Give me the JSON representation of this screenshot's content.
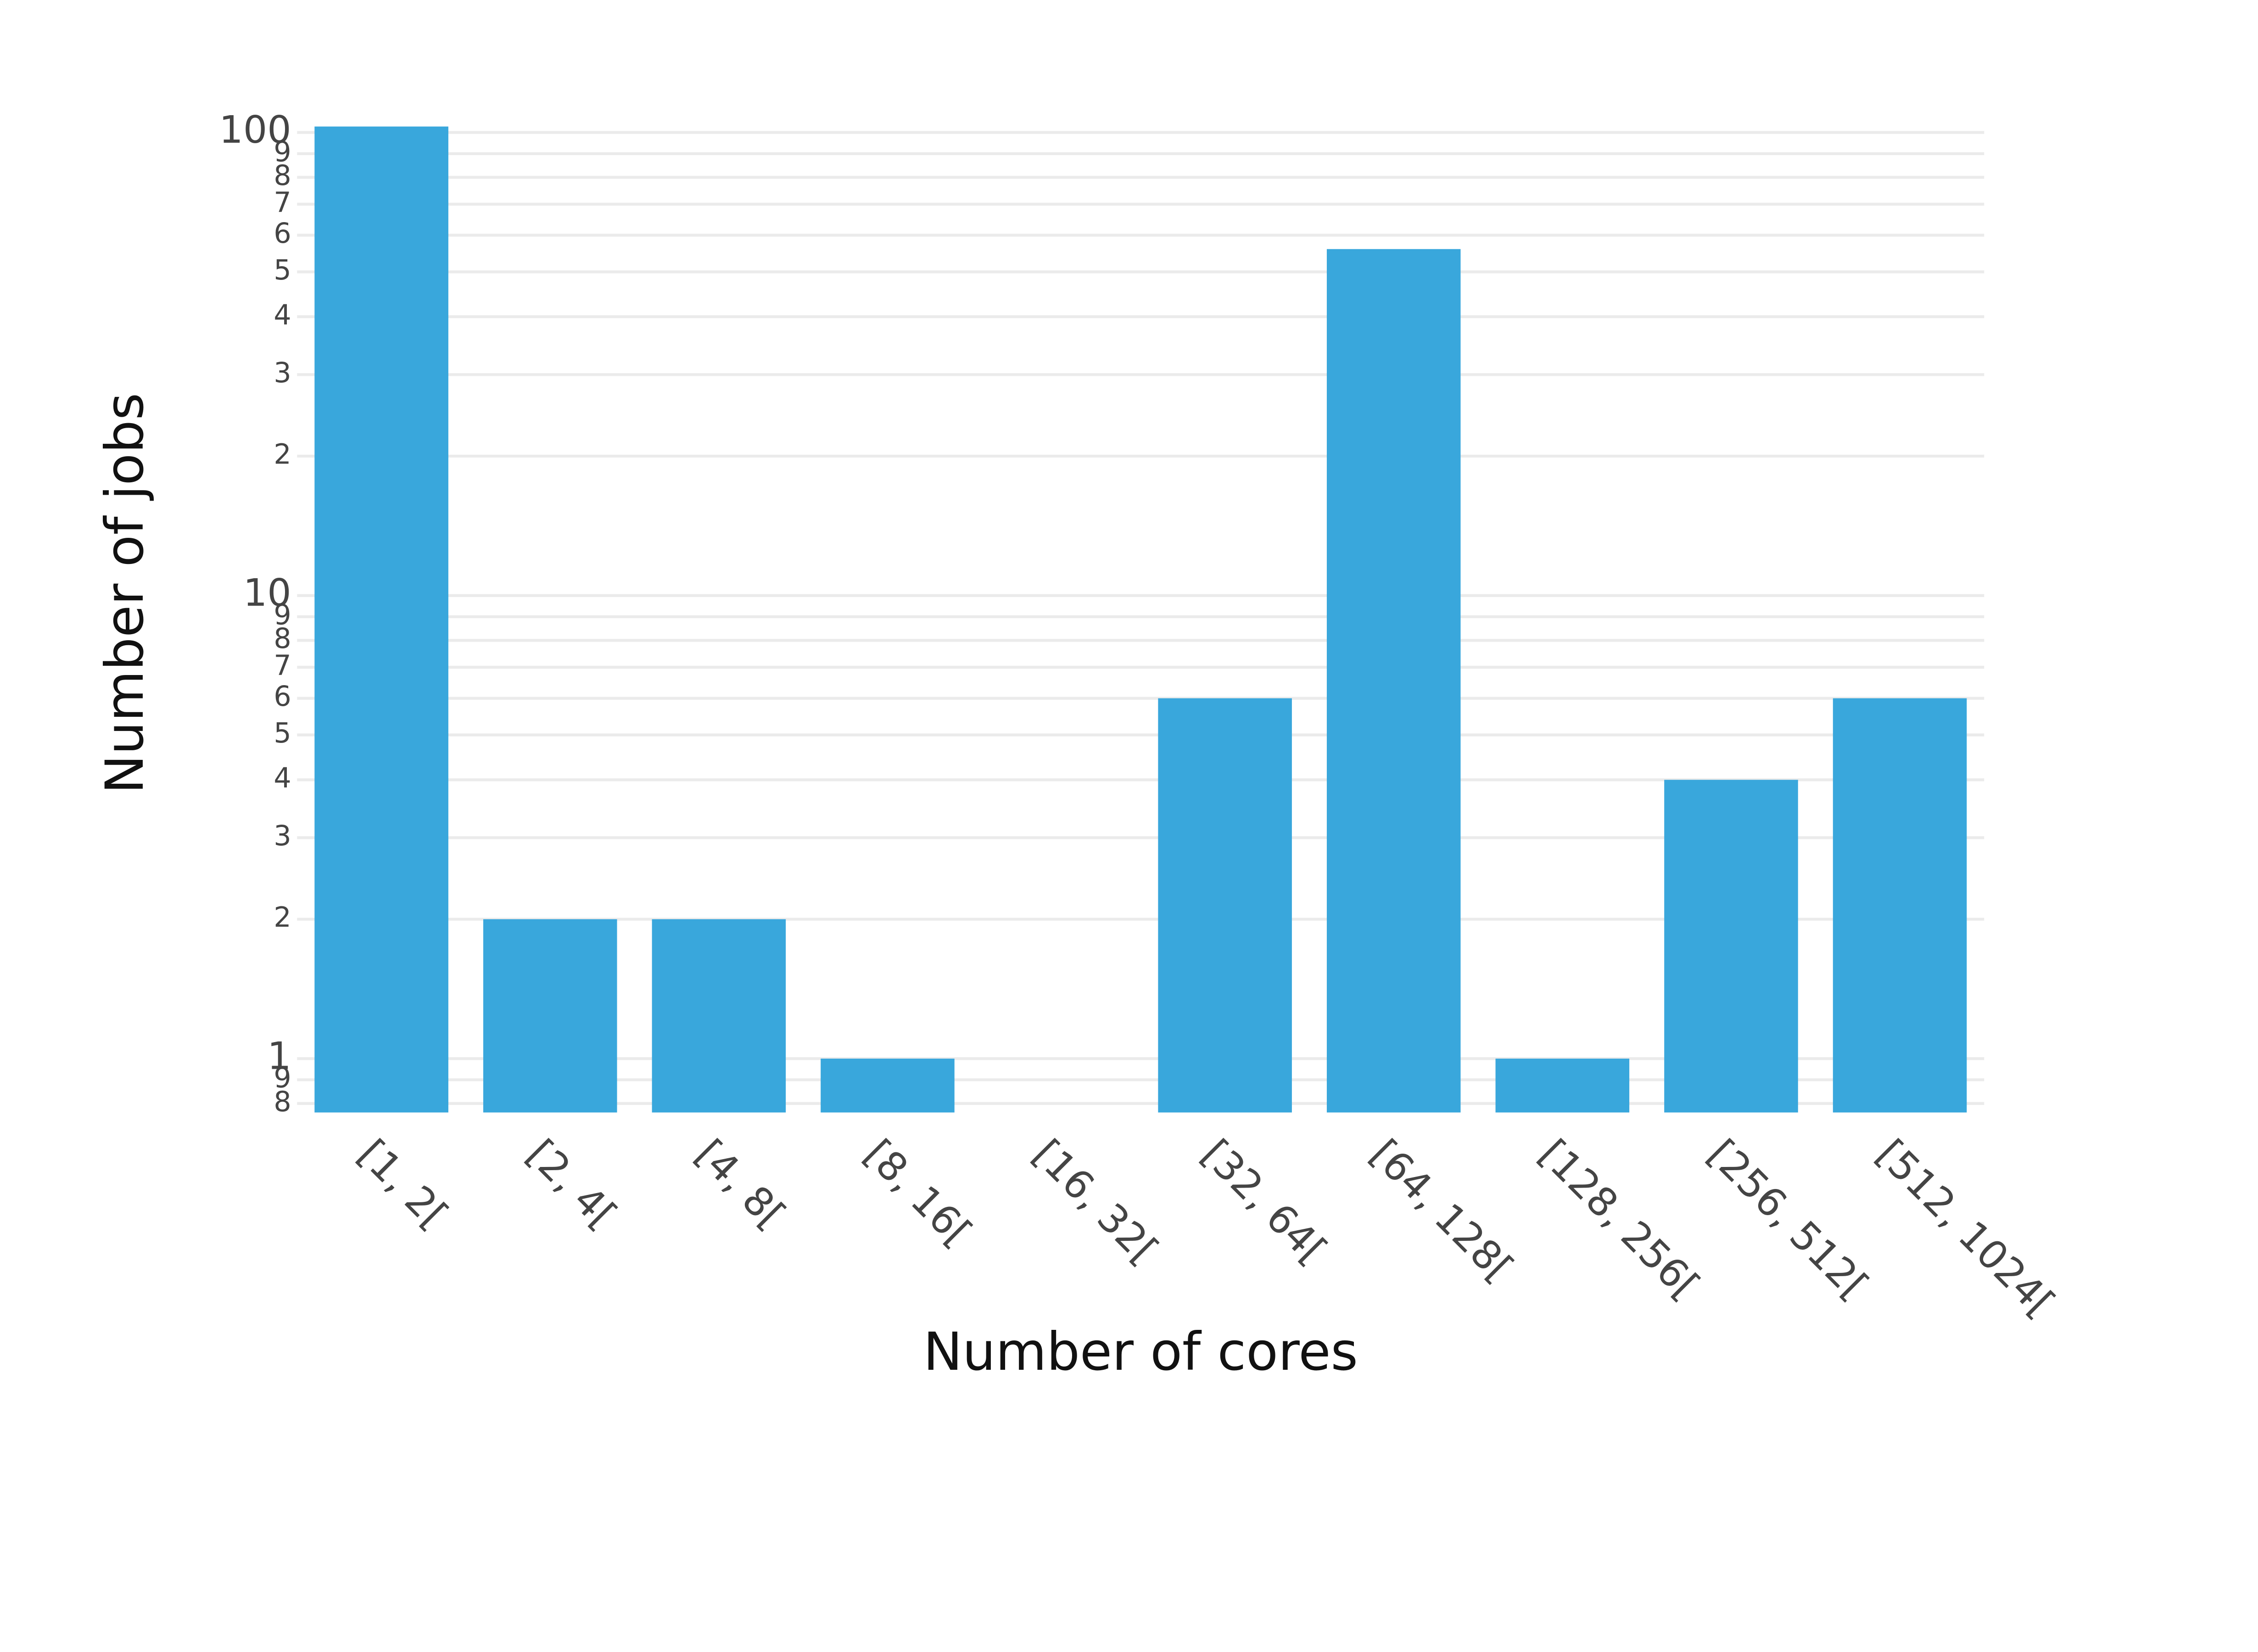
{
  "chart_data": {
    "type": "bar",
    "x_label": "Number of cores",
    "y_label": "Number of jobs",
    "categories": [
      "[1, 2[",
      "[2, 4[",
      "[4, 8[",
      "[8, 16[",
      "[16, 32[",
      "[32, 64[",
      "[64, 128[",
      "[128, 256[",
      "[256, 512[",
      "[512, 1024["
    ],
    "values": [
      103,
      2,
      2,
      1,
      0,
      6,
      56,
      1,
      4,
      6
    ],
    "color": "#3aa7dc",
    "log_y": true,
    "grid": true,
    "ylim": [
      0.765,
      103
    ],
    "yticks": [
      {
        "value": 0.8,
        "label": "8"
      },
      {
        "value": 0.9,
        "label": "9"
      },
      1,
      2,
      3,
      4,
      5,
      6,
      7,
      8,
      9,
      10,
      {
        "value": 20,
        "label": "2"
      },
      {
        "value": 30,
        "label": "3"
      },
      {
        "value": 40,
        "label": "4"
      },
      {
        "value": 50,
        "label": "5"
      },
      {
        "value": 60,
        "label": "6"
      },
      {
        "value": 70,
        "label": "7"
      },
      {
        "value": 80,
        "label": "8"
      },
      {
        "value": 90,
        "label": "9"
      },
      100
    ]
  }
}
